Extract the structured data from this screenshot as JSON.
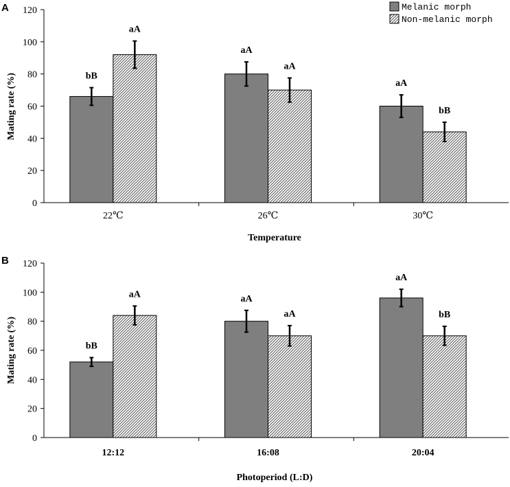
{
  "chart_data": [
    {
      "type": "bar",
      "panel_label": "A",
      "xlabel": "Temperature",
      "ylabel": "Mating rate (%)",
      "ylim": [
        0,
        120
      ],
      "yticks": [
        0,
        20,
        40,
        60,
        80,
        100,
        120
      ],
      "categories": [
        "22℃",
        "26℃",
        "30℃"
      ],
      "legend": {
        "placement": "top-right",
        "entries": [
          "Melanic morph",
          "Non-melanic morph"
        ]
      },
      "series": [
        {
          "name": "Melanic morph",
          "color": "#7f7f7f",
          "pattern": "solid",
          "values": [
            66,
            80,
            60
          ],
          "errors": [
            5.5,
            7.5,
            7
          ],
          "labels": [
            "bB",
            "aA",
            "aA"
          ]
        },
        {
          "name": "Non-melanic morph",
          "color": "#ffffff",
          "pattern": "hatched",
          "values": [
            92,
            70,
            44
          ],
          "errors": [
            8.5,
            7.5,
            6
          ],
          "labels": [
            "aA",
            "aA",
            "bB"
          ]
        }
      ]
    },
    {
      "type": "bar",
      "panel_label": "B",
      "xlabel": "Photoperiod (L:D)",
      "ylabel": "Mating rate (%)",
      "ylim": [
        0,
        120
      ],
      "yticks": [
        0,
        20,
        40,
        60,
        80,
        100,
        120
      ],
      "categories": [
        "12:12",
        "16:08",
        "20:04"
      ],
      "series": [
        {
          "name": "Melanic morph",
          "color": "#7f7f7f",
          "pattern": "solid",
          "values": [
            52,
            80,
            96
          ],
          "errors": [
            3,
            7.5,
            6
          ],
          "labels": [
            "bB",
            "aA",
            "aA"
          ]
        },
        {
          "name": "Non-melanic morph",
          "color": "#ffffff",
          "pattern": "hatched",
          "values": [
            84,
            70,
            70
          ],
          "errors": [
            6.5,
            7,
            6.5
          ],
          "labels": [
            "aA",
            "aA",
            "bB"
          ]
        }
      ]
    }
  ]
}
